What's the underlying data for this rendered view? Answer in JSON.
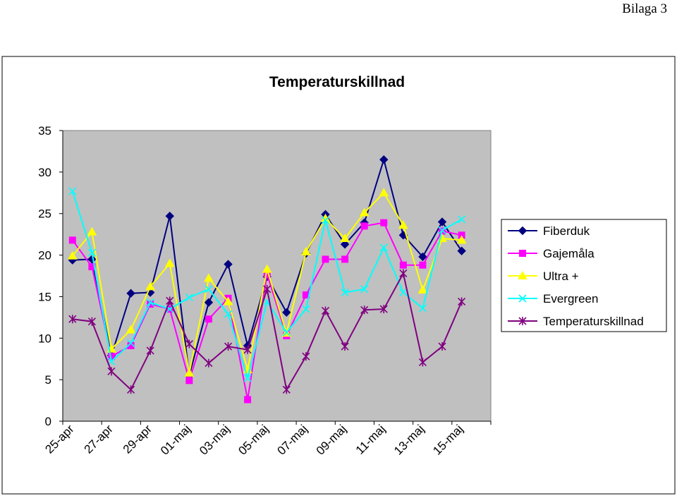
{
  "page_label": "Bilaga 3",
  "chart_data": {
    "type": "line",
    "title": "Temperaturskillnad",
    "xlabel": "",
    "ylabel": "",
    "ylim": [
      0,
      35
    ],
    "yticks": [
      0,
      5,
      10,
      15,
      20,
      25,
      30,
      35
    ],
    "grid": false,
    "legend": "right",
    "plot_background": "#c0c0c0",
    "categories": [
      "25-apr",
      "26-apr",
      "27-apr",
      "28-apr",
      "29-apr",
      "30-apr",
      "01-maj",
      "02-maj",
      "03-maj",
      "04-maj",
      "05-maj",
      "06-maj",
      "07-maj",
      "08-maj",
      "09-maj",
      "10-maj",
      "11-maj",
      "12-maj",
      "13-maj",
      "14-maj",
      "15-maj",
      "16-maj"
    ],
    "tick_labels": [
      "25-apr",
      "27-apr",
      "29-apr",
      "01-maj",
      "03-maj",
      "05-maj",
      "07-maj",
      "09-maj",
      "11-maj",
      "13-maj",
      "15-maj"
    ],
    "series": [
      {
        "name": "Fiberduk",
        "color": "#000080",
        "marker": "diamond",
        "values": [
          19.4,
          19.5,
          7.9,
          15.4,
          15.5,
          24.7,
          5.5,
          14.3,
          18.9,
          9.1,
          17.4,
          13.1,
          20.2,
          24.9,
          21.3,
          23.9,
          31.5,
          22.4,
          19.8,
          24.0,
          20.5,
          null
        ]
      },
      {
        "name": "Gajemåla",
        "color": "#ff00ff",
        "marker": "square",
        "values": [
          21.8,
          18.6,
          7.8,
          9.1,
          14.1,
          13.5,
          4.9,
          12.3,
          14.8,
          2.6,
          17.7,
          10.3,
          15.2,
          19.5,
          19.5,
          23.5,
          23.9,
          18.8,
          18.8,
          22.9,
          22.4,
          null
        ]
      },
      {
        "name": "Ultra +",
        "color": "#ffff00",
        "marker": "triangle",
        "values": [
          19.9,
          22.8,
          8.7,
          11.0,
          16.2,
          19.0,
          5.8,
          17.2,
          14.4,
          6.2,
          18.3,
          10.6,
          20.4,
          24.4,
          22.0,
          25.1,
          27.5,
          23.6,
          15.8,
          22.0,
          21.8,
          null
        ]
      },
      {
        "name": "Evergreen",
        "color": "#00ffff",
        "marker": "x",
        "values": [
          27.7,
          20.3,
          7.2,
          9.4,
          14.3,
          13.5,
          14.9,
          15.9,
          12.9,
          5.2,
          14.4,
          10.7,
          13.5,
          24.2,
          15.5,
          15.9,
          20.9,
          15.5,
          13.6,
          23.0,
          24.3,
          null
        ]
      },
      {
        "name": "Temperaturskillnad",
        "color": "#800080",
        "marker": "star",
        "values": [
          12.3,
          12.0,
          6.0,
          3.8,
          8.5,
          14.5,
          9.3,
          7.0,
          9.0,
          8.6,
          15.9,
          3.8,
          7.8,
          13.3,
          9.0,
          13.4,
          13.5,
          17.8,
          7.1,
          9.0,
          14.4,
          null
        ]
      }
    ]
  }
}
